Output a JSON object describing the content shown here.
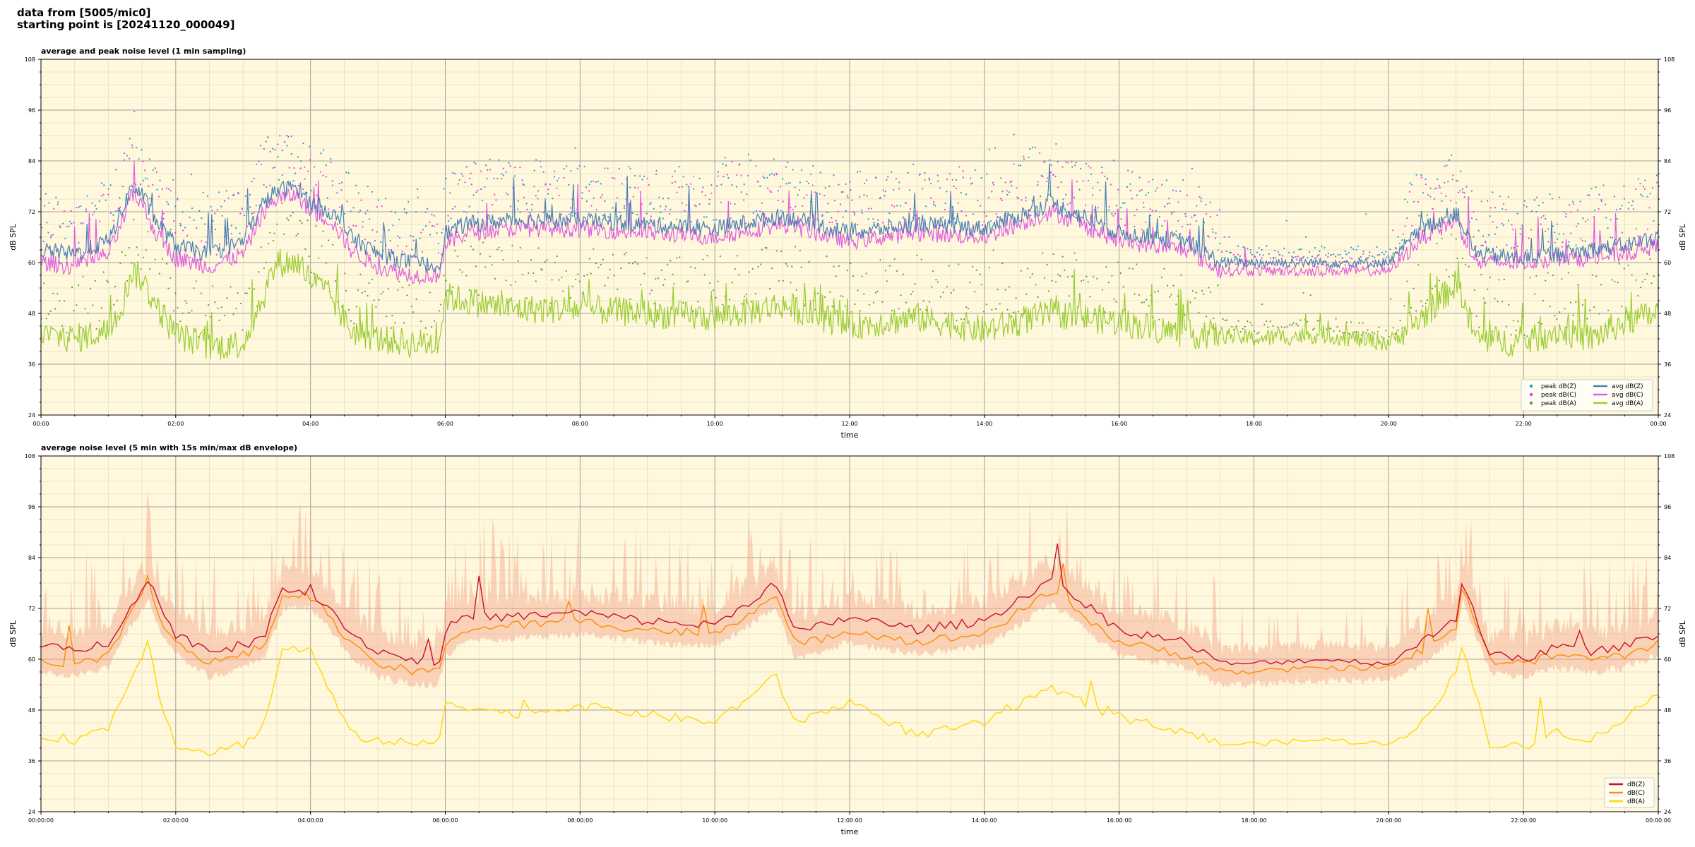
{
  "header": {
    "line1": "data from [5005/mic0]",
    "line2": "starting point is [20241120_000049]"
  },
  "colors": {
    "plot_background": "#fff8dc",
    "peak_z": "#1f9bd1",
    "peak_c": "#e83ee8",
    "peak_a": "#5b9e3a",
    "avg_z": "#4a7fb5",
    "avg_c": "#e05ce0",
    "avg_a": "#9acd32",
    "dbz": "#c8102e",
    "dbc": "#ff8c00",
    "dba": "#ffd700",
    "envelope": "#f4a58a"
  },
  "chart_data": [
    {
      "type": "line",
      "title": "average and peak noise level (1 min sampling)",
      "xlabel": "time",
      "ylabel": "dB SPL",
      "ylim": [
        24,
        108
      ],
      "xlim_hours": [
        0,
        24
      ],
      "yticks": [
        "24",
        "36",
        "48",
        "60",
        "72",
        "84",
        "96",
        "108"
      ],
      "xticks": [
        "00:00",
        "02:00",
        "04:00",
        "06:00",
        "08:00",
        "10:00",
        "12:00",
        "14:00",
        "16:00",
        "18:00",
        "20:00",
        "22:00",
        "00:00"
      ],
      "grid": true,
      "legend_position": "bottom-right",
      "series": [
        {
          "name": "avg dB(Z)",
          "kind": "line",
          "hours": [
            0,
            0.5,
            1,
            1.2,
            1.35,
            1.5,
            1.7,
            2,
            2.5,
            3,
            3.3,
            3.5,
            3.8,
            4,
            4.3,
            4.6,
            5,
            5.5,
            5.9,
            6,
            6.3,
            7,
            8,
            9,
            10,
            11,
            12,
            13,
            14,
            15,
            16,
            17,
            17.5,
            18,
            19,
            20,
            20.5,
            21,
            21.3,
            22,
            22.5,
            23,
            23.5,
            24
          ],
          "values": [
            63,
            62,
            65,
            72,
            78,
            76,
            70,
            64,
            62,
            65,
            74,
            77,
            78,
            74,
            72,
            66,
            62,
            60,
            59,
            67,
            69,
            70,
            70,
            69,
            68,
            71,
            67,
            69,
            68,
            74,
            67,
            65,
            60,
            60,
            60,
            60,
            68,
            72,
            62,
            61,
            62,
            63,
            64,
            66
          ]
        },
        {
          "name": "avg dB(C)",
          "kind": "line",
          "hours": [
            0,
            0.5,
            1,
            1.2,
            1.35,
            1.5,
            1.7,
            2,
            2.5,
            3,
            3.3,
            3.5,
            3.8,
            4,
            4.3,
            4.6,
            5,
            5.5,
            5.9,
            6,
            6.3,
            7,
            8,
            9,
            10,
            11,
            12,
            13,
            14,
            15,
            16,
            17,
            17.5,
            18,
            19,
            20,
            20.5,
            21,
            21.3,
            22,
            22.5,
            23,
            23.5,
            24
          ],
          "values": [
            60,
            59,
            62,
            69,
            76,
            74,
            67,
            61,
            59,
            62,
            72,
            75,
            76,
            72,
            70,
            63,
            59,
            57,
            57,
            64,
            67,
            68,
            68,
            67,
            66,
            69,
            65,
            67,
            66,
            72,
            65,
            63,
            58,
            58,
            58,
            58,
            66,
            70,
            60,
            60,
            61,
            61,
            62,
            64
          ]
        },
        {
          "name": "avg dB(A)",
          "kind": "line",
          "hours": [
            0,
            0.5,
            1,
            1.2,
            1.35,
            1.5,
            1.7,
            2,
            2.5,
            3,
            3.3,
            3.5,
            3.8,
            4,
            4.3,
            4.6,
            5,
            5.5,
            5.9,
            6,
            6.3,
            7,
            8,
            9,
            10,
            11,
            12,
            13,
            14,
            15,
            16,
            17,
            17.5,
            18,
            19,
            20,
            20.5,
            21,
            21.3,
            22,
            22.5,
            23,
            23.5,
            24
          ],
          "values": [
            43,
            42,
            44,
            50,
            58,
            56,
            50,
            43,
            40,
            41,
            52,
            60,
            60,
            56,
            52,
            44,
            42,
            41,
            41,
            52,
            51,
            49,
            49,
            48,
            47,
            50,
            45,
            47,
            44,
            48,
            46,
            43,
            43,
            42,
            43,
            41,
            47,
            55,
            42,
            41,
            44,
            42,
            46,
            48
          ]
        },
        {
          "name": "peak dB(Z)",
          "kind": "scatter",
          "note": "scattered peak points above avg dB(Z), roughly 2–20 dB higher"
        },
        {
          "name": "peak dB(C)",
          "kind": "scatter",
          "note": "scattered peak points above avg dB(C)"
        },
        {
          "name": "peak dB(A)",
          "kind": "scatter",
          "note": "scattered peak points above avg dB(A)"
        }
      ]
    },
    {
      "type": "line",
      "title": "average noise level (5 min with 15s min/max dB envelope)",
      "xlabel": "time",
      "ylabel": "dB SPL",
      "ylim": [
        24,
        108
      ],
      "xlim_hours": [
        0,
        24
      ],
      "yticks": [
        "24",
        "36",
        "48",
        "60",
        "72",
        "84",
        "96",
        "108"
      ],
      "xticks": [
        "00:00:00",
        "02:00:00",
        "04:00:00",
        "06:00:00",
        "08:00:00",
        "10:00:00",
        "12:00:00",
        "14:00:00",
        "16:00:00",
        "18:00:00",
        "20:00:00",
        "22:00:00",
        "00:00:00"
      ],
      "grid": true,
      "legend_position": "bottom-right",
      "series": [
        {
          "name": "dB(Z)",
          "kind": "line",
          "hours": [
            0,
            0.5,
            1,
            1.3,
            1.6,
            1.8,
            2,
            2.5,
            3,
            3.3,
            3.6,
            4,
            4.3,
            4.6,
            5,
            5.5,
            5.9,
            6,
            6.3,
            7,
            8,
            9,
            10,
            10.9,
            11.2,
            12,
            13,
            14,
            15,
            16,
            17,
            17.5,
            18,
            19,
            20,
            20.5,
            21,
            21.1,
            21.5,
            22,
            22.5,
            23,
            23.5,
            24
          ],
          "values": [
            63,
            62,
            64,
            72,
            79,
            71,
            66,
            62,
            63,
            65,
            77,
            76,
            72,
            66,
            62,
            60,
            59,
            67,
            70,
            70,
            71,
            69,
            68,
            78,
            66,
            70,
            67,
            69,
            79,
            67,
            64,
            59,
            59,
            60,
            59,
            64,
            70,
            79,
            61,
            60,
            63,
            62,
            63,
            66
          ]
        },
        {
          "name": "dB(C)",
          "kind": "line",
          "hours": [
            0,
            0.5,
            1,
            1.3,
            1.6,
            1.8,
            2,
            2.5,
            3,
            3.3,
            3.6,
            4,
            4.3,
            4.6,
            5,
            5.5,
            5.9,
            6,
            6.3,
            7,
            8,
            9,
            10,
            10.9,
            11.2,
            12,
            13,
            14,
            15,
            16,
            17,
            17.5,
            18,
            19,
            20,
            20.5,
            21,
            21.1,
            21.5,
            22,
            22.5,
            23,
            23.5,
            24
          ],
          "values": [
            60,
            59,
            61,
            70,
            77,
            69,
            64,
            59,
            61,
            63,
            75,
            75,
            70,
            63,
            59,
            57,
            57,
            64,
            67,
            68,
            69,
            67,
            66,
            75,
            63,
            67,
            64,
            66,
            76,
            64,
            61,
            57,
            57,
            58,
            58,
            62,
            68,
            77,
            60,
            59,
            61,
            60,
            61,
            64
          ]
        },
        {
          "name": "dB(A)",
          "kind": "line",
          "hours": [
            0,
            0.5,
            1,
            1.3,
            1.6,
            1.8,
            2,
            2.5,
            3,
            3.3,
            3.6,
            4,
            4.3,
            4.6,
            5,
            5.5,
            5.9,
            6,
            6.3,
            7,
            8,
            9,
            10,
            10.9,
            11.2,
            12,
            13,
            14,
            15,
            16,
            17,
            17.5,
            18,
            19,
            20,
            20.5,
            21,
            21.1,
            21.5,
            22,
            22.5,
            23,
            23.5,
            24
          ],
          "values": [
            42,
            41,
            44,
            54,
            65,
            48,
            40,
            38,
            40,
            44,
            63,
            62,
            52,
            42,
            41,
            40,
            40,
            50,
            49,
            47,
            49,
            47,
            45,
            56,
            45,
            50,
            42,
            45,
            53,
            46,
            43,
            40,
            40,
            41,
            40,
            45,
            57,
            63,
            40,
            39,
            43,
            41,
            46,
            52
          ]
        },
        {
          "name": "envelope",
          "kind": "area",
          "note": "15s min/max band around dB(Z)/dB(C), up to ~95 dB peaks"
        }
      ]
    }
  ]
}
